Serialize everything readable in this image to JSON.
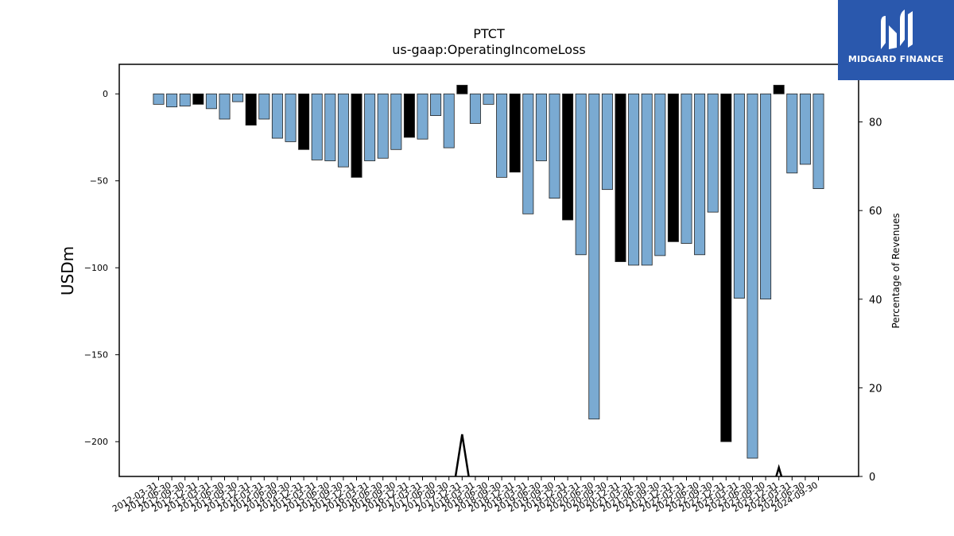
{
  "chart_data": {
    "type": "bar",
    "title": "PTCT",
    "subtitle": "us-gaap:OperatingIncomeLoss",
    "ylabel": "USDm",
    "y2label": "Percentage of Revenues",
    "ylim": [
      -220,
      17
    ],
    "y2lim": [
      0,
      93
    ],
    "yticks": [
      0,
      -50,
      -100,
      -150,
      -200
    ],
    "y2ticks": [
      0,
      20,
      40,
      60,
      80
    ],
    "categories": [
      "2012-03-31",
      "2012-06-30",
      "2012-09-30",
      "2012-12-31",
      "2013-03-31",
      "2013-06-30",
      "2013-09-30",
      "2013-12-31",
      "2014-03-31",
      "2014-06-30",
      "2014-09-30",
      "2014-12-31",
      "2015-03-31",
      "2015-06-30",
      "2015-09-30",
      "2015-12-31",
      "2016-03-31",
      "2016-06-30",
      "2016-09-30",
      "2016-12-31",
      "2017-03-31",
      "2017-06-30",
      "2017-09-30",
      "2017-12-31",
      "2018-03-31",
      "2018-06-30",
      "2018-09-30",
      "2018-12-31",
      "2019-03-31",
      "2019-06-30",
      "2019-09-30",
      "2019-12-31",
      "2020-03-31",
      "2020-06-30",
      "2020-09-30",
      "2020-12-31",
      "2021-03-31",
      "2021-06-30",
      "2021-09-30",
      "2021-12-31",
      "2022-03-31",
      "2022-06-30",
      "2022-09-30",
      "2022-12-31",
      "2023-03-31",
      "2023-06-30",
      "2023-09-30",
      "2023-12-31",
      "2024-03-31",
      "2024-06-30",
      "2024-09-30"
    ],
    "values": [
      -6,
      -7.5,
      -7,
      -6,
      -8.5,
      -14.5,
      -4.5,
      -18,
      -14.5,
      -25.5,
      -27.5,
      -32,
      -38,
      -38.5,
      -42,
      -48,
      -38.5,
      -37,
      -32,
      -25,
      -26,
      -12.5,
      -31,
      5,
      -17,
      -6,
      -48,
      -45,
      -69,
      -38.5,
      -60,
      -72.5,
      -92.5,
      -187,
      -55,
      -96.5,
      -98.5,
      -98.5,
      -93,
      -85,
      -86,
      -92.5,
      -68,
      -200,
      -117.5,
      -209.5,
      -118,
      5,
      -45.5,
      -40.5,
      -54.5
    ],
    "highlight": [
      false,
      false,
      false,
      true,
      false,
      false,
      false,
      true,
      false,
      false,
      false,
      true,
      false,
      false,
      false,
      true,
      false,
      false,
      false,
      true,
      false,
      false,
      false,
      true,
      false,
      false,
      false,
      true,
      false,
      false,
      false,
      true,
      false,
      false,
      false,
      true,
      false,
      false,
      false,
      true,
      false,
      false,
      false,
      true,
      false,
      false,
      false,
      true,
      false,
      false,
      false
    ],
    "colors": {
      "quarter": "#7aaad2",
      "annual": "#000000",
      "edge": "#222222",
      "pct_line": "#000000"
    },
    "pct_series": {
      "points": [
        [
          22.5,
          0
        ],
        [
          23,
          9.5
        ],
        [
          23.5,
          0
        ],
        [
          46.8,
          0
        ],
        [
          47,
          2
        ],
        [
          47.2,
          0
        ]
      ]
    },
    "grid": false,
    "legend": "none"
  },
  "logo": {
    "text": "MIDGARD FINANCE",
    "icon": "midgard-m-logo-icon"
  }
}
